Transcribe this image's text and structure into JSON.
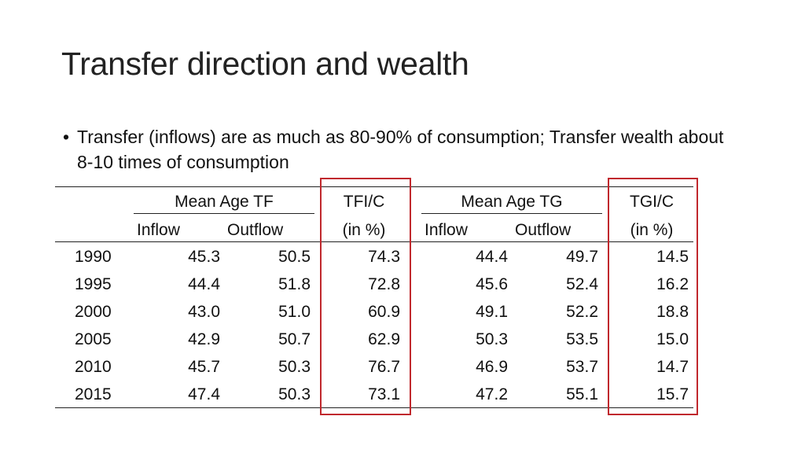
{
  "slide": {
    "title": "Transfer direction and wealth",
    "bullet_marker": "•",
    "bullet": "Transfer (inflows) are as much as 80-90% of consumption; Transfer wealth about 8-10 times of consumption"
  },
  "table": {
    "group_headers": {
      "tf": "Mean Age TF",
      "tfi": "TFI/C",
      "tg": "Mean Age TG",
      "tgi": "TGI/C"
    },
    "sub_headers": {
      "tf_inflow": "Inflow",
      "tf_outflow": "Outflow",
      "tfi_unit": "(in %)",
      "tg_inflow": "Inflow",
      "tg_outflow": "Outflow",
      "tgi_unit": "(in %)"
    },
    "rows": [
      {
        "year": "1990",
        "tf_inflow": "45.3",
        "tf_outflow": "50.5",
        "tfi_c": "74.3",
        "tg_inflow": "44.4",
        "tg_outflow": "49.7",
        "tgi_c": "14.5"
      },
      {
        "year": "1995",
        "tf_inflow": "44.4",
        "tf_outflow": "51.8",
        "tfi_c": "72.8",
        "tg_inflow": "45.6",
        "tg_outflow": "52.4",
        "tgi_c": "16.2"
      },
      {
        "year": "2000",
        "tf_inflow": "43.0",
        "tf_outflow": "51.0",
        "tfi_c": "60.9",
        "tg_inflow": "49.1",
        "tg_outflow": "52.2",
        "tgi_c": "18.8"
      },
      {
        "year": "2005",
        "tf_inflow": "42.9",
        "tf_outflow": "50.7",
        "tfi_c": "62.9",
        "tg_inflow": "50.3",
        "tg_outflow": "53.5",
        "tgi_c": "15.0"
      },
      {
        "year": "2010",
        "tf_inflow": "45.7",
        "tf_outflow": "50.3",
        "tfi_c": "76.7",
        "tg_inflow": "46.9",
        "tg_outflow": "53.7",
        "tgi_c": "14.7"
      },
      {
        "year": "2015",
        "tf_inflow": "47.4",
        "tf_outflow": "50.3",
        "tfi_c": "73.1",
        "tg_inflow": "47.2",
        "tg_outflow": "55.1",
        "tgi_c": "15.7"
      }
    ],
    "highlight_color": "#c0282d"
  }
}
